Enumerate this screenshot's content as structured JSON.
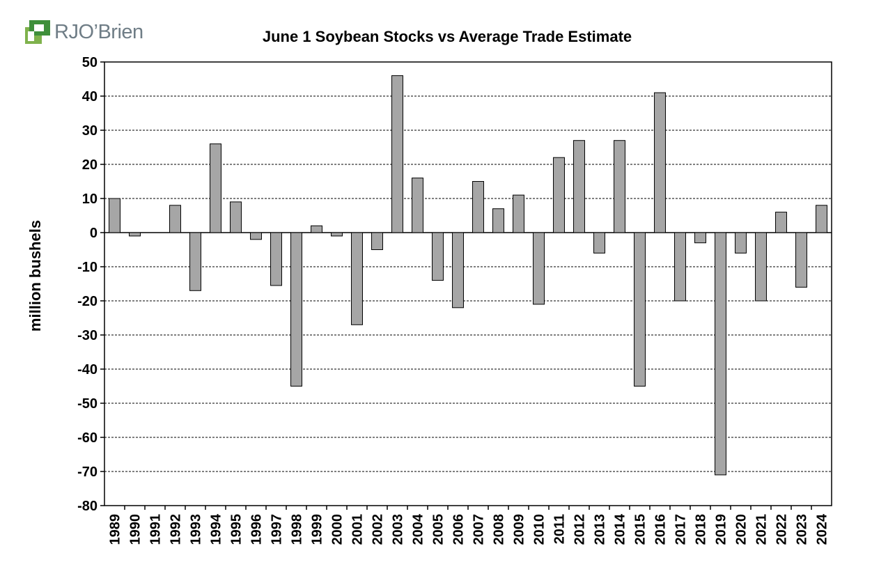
{
  "logo": {
    "text": "RJO’Brien"
  },
  "chart_data": {
    "type": "bar",
    "title": "June 1 Soybean Stocks vs Average Trade Estimate",
    "xlabel": "",
    "ylabel": "million bushels",
    "ylim": [
      -80,
      50
    ],
    "yticks": [
      50,
      40,
      30,
      20,
      10,
      0,
      -10,
      -20,
      -30,
      -40,
      -50,
      -60,
      -70,
      -80
    ],
    "grid": true,
    "legend": "none",
    "bar_color": "#a6a6a6",
    "categories": [
      "1989",
      "1990",
      "1991",
      "1992",
      "1993",
      "1994",
      "1995",
      "1996",
      "1997",
      "1998",
      "1999",
      "2000",
      "2001",
      "2002",
      "2003",
      "2004",
      "2005",
      "2006",
      "2007",
      "2008",
      "2009",
      "2010",
      "2011",
      "2012",
      "2013",
      "2014",
      "2015",
      "2016",
      "2017",
      "2018",
      "2019",
      "2020",
      "2021",
      "2022",
      "2023",
      "2024"
    ],
    "values": [
      10,
      -1,
      0,
      8,
      -17,
      26,
      9,
      -2,
      -15.5,
      -45,
      2,
      -1,
      -27,
      -5,
      46,
      16,
      -14,
      -22,
      15,
      7,
      11,
      -21,
      22,
      27,
      -6,
      27,
      -45,
      41,
      -20,
      -3,
      -71,
      -6,
      -20,
      6,
      -16,
      8
    ]
  }
}
